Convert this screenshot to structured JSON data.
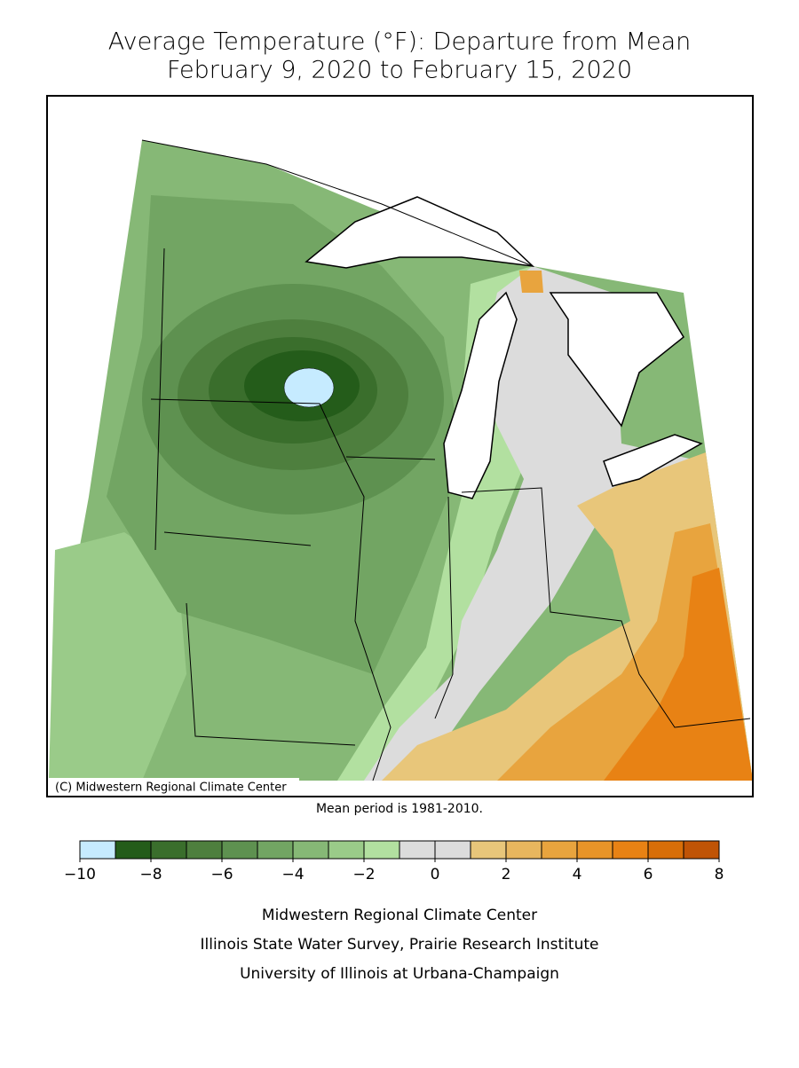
{
  "header": {
    "title": "Average Temperature (°F): Departure from Mean",
    "subtitle": "February 9, 2020 to February 15, 2020"
  },
  "map": {
    "copyright": "(C) Midwestern Regional Climate Center",
    "note": "Mean period is 1981-2010."
  },
  "legend": {
    "lim": [
      -10,
      8
    ],
    "bins": [
      -10,
      -9,
      -8,
      -7,
      -6,
      -5,
      -4,
      -3,
      -2,
      -1,
      0,
      1,
      2,
      3,
      4,
      5,
      6,
      7,
      8
    ],
    "colors": [
      "#c6ebff",
      "#245c1a",
      "#3a6e2c",
      "#4e7f3e",
      "#5e9150",
      "#72a563",
      "#86b876",
      "#9acb89",
      "#b2e0a0",
      "#dcdcdc",
      "#dcdcdc",
      "#e8c67a",
      "#e8b65e",
      "#e8a43e",
      "#e89428",
      "#e88214",
      "#d86e08",
      "#c05406"
    ],
    "ticks": [
      {
        "value": -10,
        "label": "−10"
      },
      {
        "value": -8,
        "label": "−8"
      },
      {
        "value": -6,
        "label": "−6"
      },
      {
        "value": -4,
        "label": "−4"
      },
      {
        "value": -2,
        "label": "−2"
      },
      0,
      2,
      4,
      6,
      8
    ]
  },
  "footer": {
    "lines": [
      "Midwestern Regional Climate Center",
      "Illinois State Water Survey, Prairie Research Institute",
      "University of Illinois at Urbana-Champaign"
    ]
  }
}
